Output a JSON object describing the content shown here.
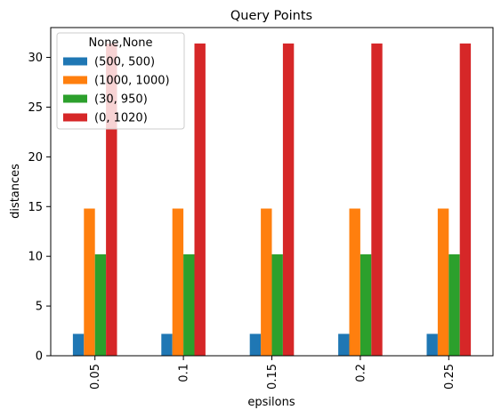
{
  "chart_data": {
    "type": "bar",
    "title": "Query Points",
    "xlabel": "epsilons",
    "ylabel": "distances",
    "categories": [
      "0.05",
      "0.1",
      "0.15",
      "0.2",
      "0.25"
    ],
    "ylim": [
      0,
      33
    ],
    "yticks": [
      0,
      5,
      10,
      15,
      20,
      25,
      30
    ],
    "grid": false,
    "legend": {
      "title": "None,None",
      "placement": "top-left"
    },
    "series": [
      {
        "name": "(500, 500)",
        "color": "#1f77b4",
        "values": [
          2.2,
          2.2,
          2.2,
          2.2,
          2.2
        ]
      },
      {
        "name": "(1000, 1000)",
        "color": "#ff7f0e",
        "values": [
          14.8,
          14.8,
          14.8,
          14.8,
          14.8
        ]
      },
      {
        "name": "(30, 950)",
        "color": "#2ca02c",
        "values": [
          10.2,
          10.2,
          10.2,
          10.2,
          10.2
        ]
      },
      {
        "name": "(0, 1020)",
        "color": "#d62728",
        "values": [
          31.4,
          31.4,
          31.4,
          31.4,
          31.4
        ]
      }
    ]
  }
}
